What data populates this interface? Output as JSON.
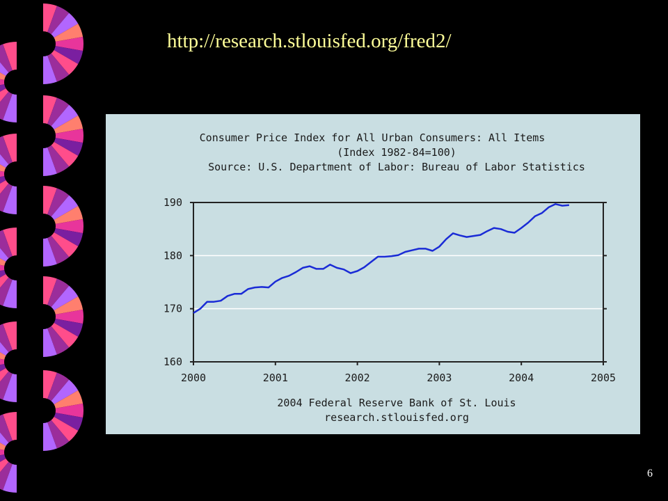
{
  "slide": {
    "url_text": "http://research.stlouisfed.org/fred2/",
    "page_number": "6"
  },
  "colors": {
    "background": "#000000",
    "url_text": "#FFFF99",
    "chart_background": "#C9DEE2",
    "series_line": "#1A2BD6",
    "fan_palette": [
      "#FF4D8B",
      "#9B2D9B",
      "#B266FF",
      "#FF7F6E",
      "#E8359B",
      "#7A1FA0"
    ]
  },
  "chart_data": {
    "type": "line",
    "title": "Consumer Price Index for All Urban Consumers: All Items",
    "subtitle": "(Index 1982-84=100)",
    "source": "Source: U.S. Department of Labor: Bureau of Labor Statistics",
    "footer_lines": [
      "2004 Federal Reserve Bank of St. Louis",
      "research.stlouisfed.org"
    ],
    "xlabel": "",
    "ylabel": "",
    "xlim": [
      2000,
      2005
    ],
    "ylim": [
      160,
      190
    ],
    "x_ticks": [
      "2000",
      "2001",
      "2002",
      "2003",
      "2004",
      "2005"
    ],
    "y_ticks": [
      "160",
      "170",
      "180",
      "190"
    ],
    "grid": "horizontal",
    "series": [
      {
        "x": [
          "2000-01",
          "2000-02",
          "2000-03",
          "2000-04",
          "2000-05",
          "2000-06",
          "2000-07",
          "2000-08",
          "2000-09",
          "2000-10",
          "2000-11",
          "2000-12",
          "2001-01",
          "2001-02",
          "2001-03",
          "2001-04",
          "2001-05",
          "2001-06",
          "2001-07",
          "2001-08",
          "2001-09",
          "2001-10",
          "2001-11",
          "2001-12",
          "2002-01",
          "2002-02",
          "2002-03",
          "2002-04",
          "2002-05",
          "2002-06",
          "2002-07",
          "2002-08",
          "2002-09",
          "2002-10",
          "2002-11",
          "2002-12",
          "2003-01",
          "2003-02",
          "2003-03",
          "2003-04",
          "2003-05",
          "2003-06",
          "2003-07",
          "2003-08",
          "2003-09",
          "2003-10",
          "2003-11",
          "2003-12",
          "2004-01",
          "2004-02",
          "2004-03",
          "2004-04",
          "2004-05",
          "2004-06",
          "2004-07",
          "2004-08"
        ],
        "y": [
          169.2,
          170.0,
          171.3,
          171.3,
          171.5,
          172.4,
          172.8,
          172.8,
          173.7,
          174.0,
          174.1,
          174.0,
          175.1,
          175.8,
          176.2,
          176.9,
          177.7,
          178.0,
          177.5,
          177.5,
          178.3,
          177.7,
          177.4,
          176.7,
          177.1,
          177.8,
          178.8,
          179.8,
          179.8,
          179.9,
          180.1,
          180.7,
          181.0,
          181.3,
          181.3,
          180.9,
          181.7,
          183.1,
          184.2,
          183.8,
          183.5,
          183.7,
          183.9,
          184.6,
          185.2,
          185.0,
          184.5,
          184.3,
          185.2,
          186.2,
          187.4,
          188.0,
          189.1,
          189.7,
          189.4,
          189.5
        ]
      }
    ]
  },
  "deco": {
    "fan_icon_name": "pinwheel-fan-icon"
  }
}
